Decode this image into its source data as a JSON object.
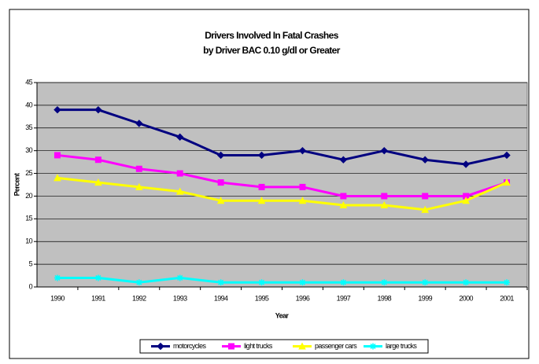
{
  "chart_data": {
    "type": "line",
    "title": "Drivers Involved In Fatal Crashes",
    "subtitle": "by Driver BAC 0.10 g/dl or Greater",
    "x_label": "Year",
    "y_label": "Percent",
    "categories": [
      "1990",
      "1991",
      "1992",
      "1993",
      "1994",
      "1995",
      "1996",
      "1997",
      "1998",
      "1999",
      "2000",
      "2001"
    ],
    "series": [
      {
        "name": "motorcycles",
        "color": "#000080",
        "marker": "diamond",
        "values": [
          39,
          39,
          36,
          33,
          29,
          29,
          30,
          28,
          30,
          28,
          27,
          29
        ]
      },
      {
        "name": "light trucks",
        "color": "#ff00ff",
        "marker": "square",
        "values": [
          29,
          28,
          26,
          25,
          23,
          22,
          22,
          20,
          20,
          20,
          20,
          23
        ]
      },
      {
        "name": "passenger cars",
        "color": "#ffff00",
        "marker": "triangle",
        "values": [
          24,
          23,
          22,
          21,
          19,
          19,
          19,
          18,
          18,
          17,
          19,
          23
        ]
      },
      {
        "name": "large trucks",
        "color": "#00ffff",
        "marker": "asterisk",
        "values": [
          2,
          2,
          1,
          2,
          1,
          1,
          1,
          1,
          1,
          1,
          1,
          1
        ]
      }
    ],
    "ylim": [
      0,
      45
    ],
    "yticks": [
      0,
      5,
      10,
      15,
      20,
      25,
      30,
      35,
      40,
      45
    ],
    "grid": true,
    "legend": "bottom"
  }
}
